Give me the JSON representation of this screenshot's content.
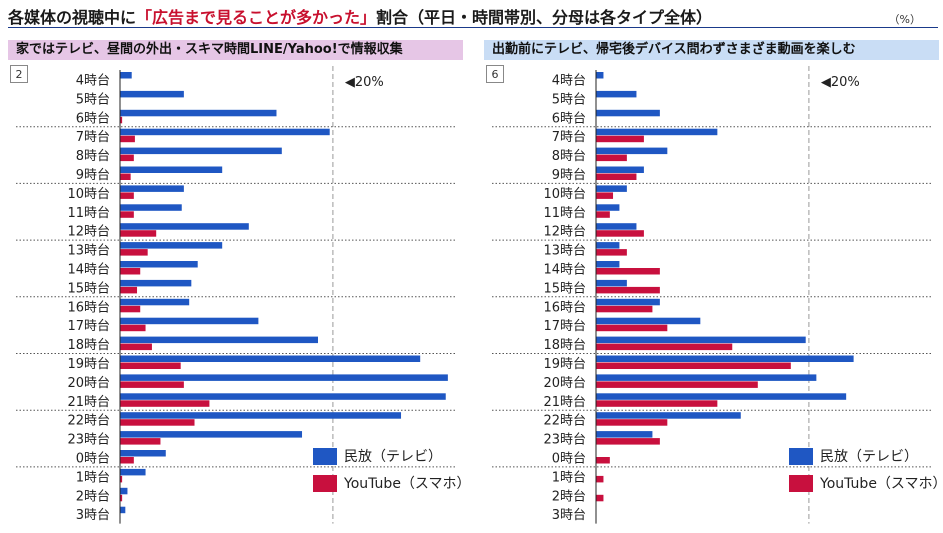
{
  "title": {
    "prefix": "各媒体の視聴中に",
    "highlight": "「広告まで見ることが多かった」",
    "suffix": "割合（平日・時間帯別、分母は各タイプ全体）"
  },
  "unit": "（%）",
  "colors": {
    "tv": "#1f57c3",
    "youtube": "#c8103e",
    "panel_left_header": "#e6c6e6",
    "panel_right_header": "#c9ddf5"
  },
  "legend": {
    "tv": "民放（テレビ）",
    "youtube": "YouTube（スマホ）"
  },
  "chart_data": [
    {
      "type": "bar",
      "orientation": "horizontal",
      "panel_number": "2",
      "header": "家ではテレビ、昼間の外出・スキマ時間LINE/Yahoo!で情報収集",
      "reference_label": "◀20%",
      "reference_value": 20,
      "xlim": [
        0,
        31
      ],
      "categories": [
        "4時台",
        "5時台",
        "6時台",
        "7時台",
        "8時台",
        "9時台",
        "10時台",
        "11時台",
        "12時台",
        "13時台",
        "14時台",
        "15時台",
        "16時台",
        "17時台",
        "18時台",
        "19時台",
        "20時台",
        "21時台",
        "22時台",
        "23時台",
        "0時台",
        "1時台",
        "2時台",
        "3時台"
      ],
      "series": [
        {
          "name": "民放（テレビ）",
          "color": "#1f57c3",
          "values": [
            1.1,
            6.0,
            14.7,
            19.7,
            15.2,
            9.6,
            6.0,
            5.8,
            12.1,
            9.6,
            7.3,
            6.7,
            6.5,
            13.0,
            18.6,
            28.2,
            30.8,
            30.6,
            26.4,
            17.1,
            4.3,
            2.4,
            0.7,
            0.5
          ]
        },
        {
          "name": "YouTube（スマホ）",
          "color": "#c8103e",
          "values": [
            0.0,
            0.0,
            0.2,
            1.4,
            1.3,
            1.0,
            1.3,
            1.3,
            3.4,
            2.6,
            1.9,
            1.6,
            1.9,
            2.4,
            3.0,
            5.7,
            6.0,
            8.4,
            7.0,
            3.8,
            1.3,
            0.2,
            0.2,
            0.0
          ]
        }
      ]
    },
    {
      "type": "bar",
      "orientation": "horizontal",
      "panel_number": "6",
      "header": "出勤前にテレビ、帰宅後デバイス問わずさまざま動画を楽しむ",
      "reference_label": "◀20%",
      "reference_value": 20,
      "xlim": [
        0,
        31
      ],
      "categories": [
        "4時台",
        "5時台",
        "6時台",
        "7時台",
        "8時台",
        "9時台",
        "10時台",
        "11時台",
        "12時台",
        "13時台",
        "14時台",
        "15時台",
        "16時台",
        "17時台",
        "18時台",
        "19時台",
        "20時台",
        "21時台",
        "22時台",
        "23時台",
        "0時台",
        "1時台",
        "2時台",
        "3時台"
      ],
      "series": [
        {
          "name": "民放（テレビ）",
          "color": "#1f57c3",
          "values": [
            0.7,
            3.8,
            6.0,
            11.4,
            6.7,
            4.5,
            2.9,
            2.2,
            3.8,
            2.2,
            2.2,
            2.9,
            6.0,
            9.8,
            19.7,
            24.2,
            20.7,
            23.5,
            13.6,
            5.3,
            0.0,
            0.0,
            0.0,
            0.0
          ]
        },
        {
          "name": "YouTube（スマホ）",
          "color": "#c8103e",
          "values": [
            0.0,
            0.0,
            0.0,
            4.5,
            2.9,
            3.8,
            1.6,
            1.3,
            4.5,
            2.9,
            6.0,
            6.0,
            5.3,
            6.7,
            12.8,
            18.3,
            15.2,
            11.4,
            6.7,
            6.0,
            1.3,
            0.7,
            0.7,
            0.0
          ]
        }
      ]
    }
  ]
}
